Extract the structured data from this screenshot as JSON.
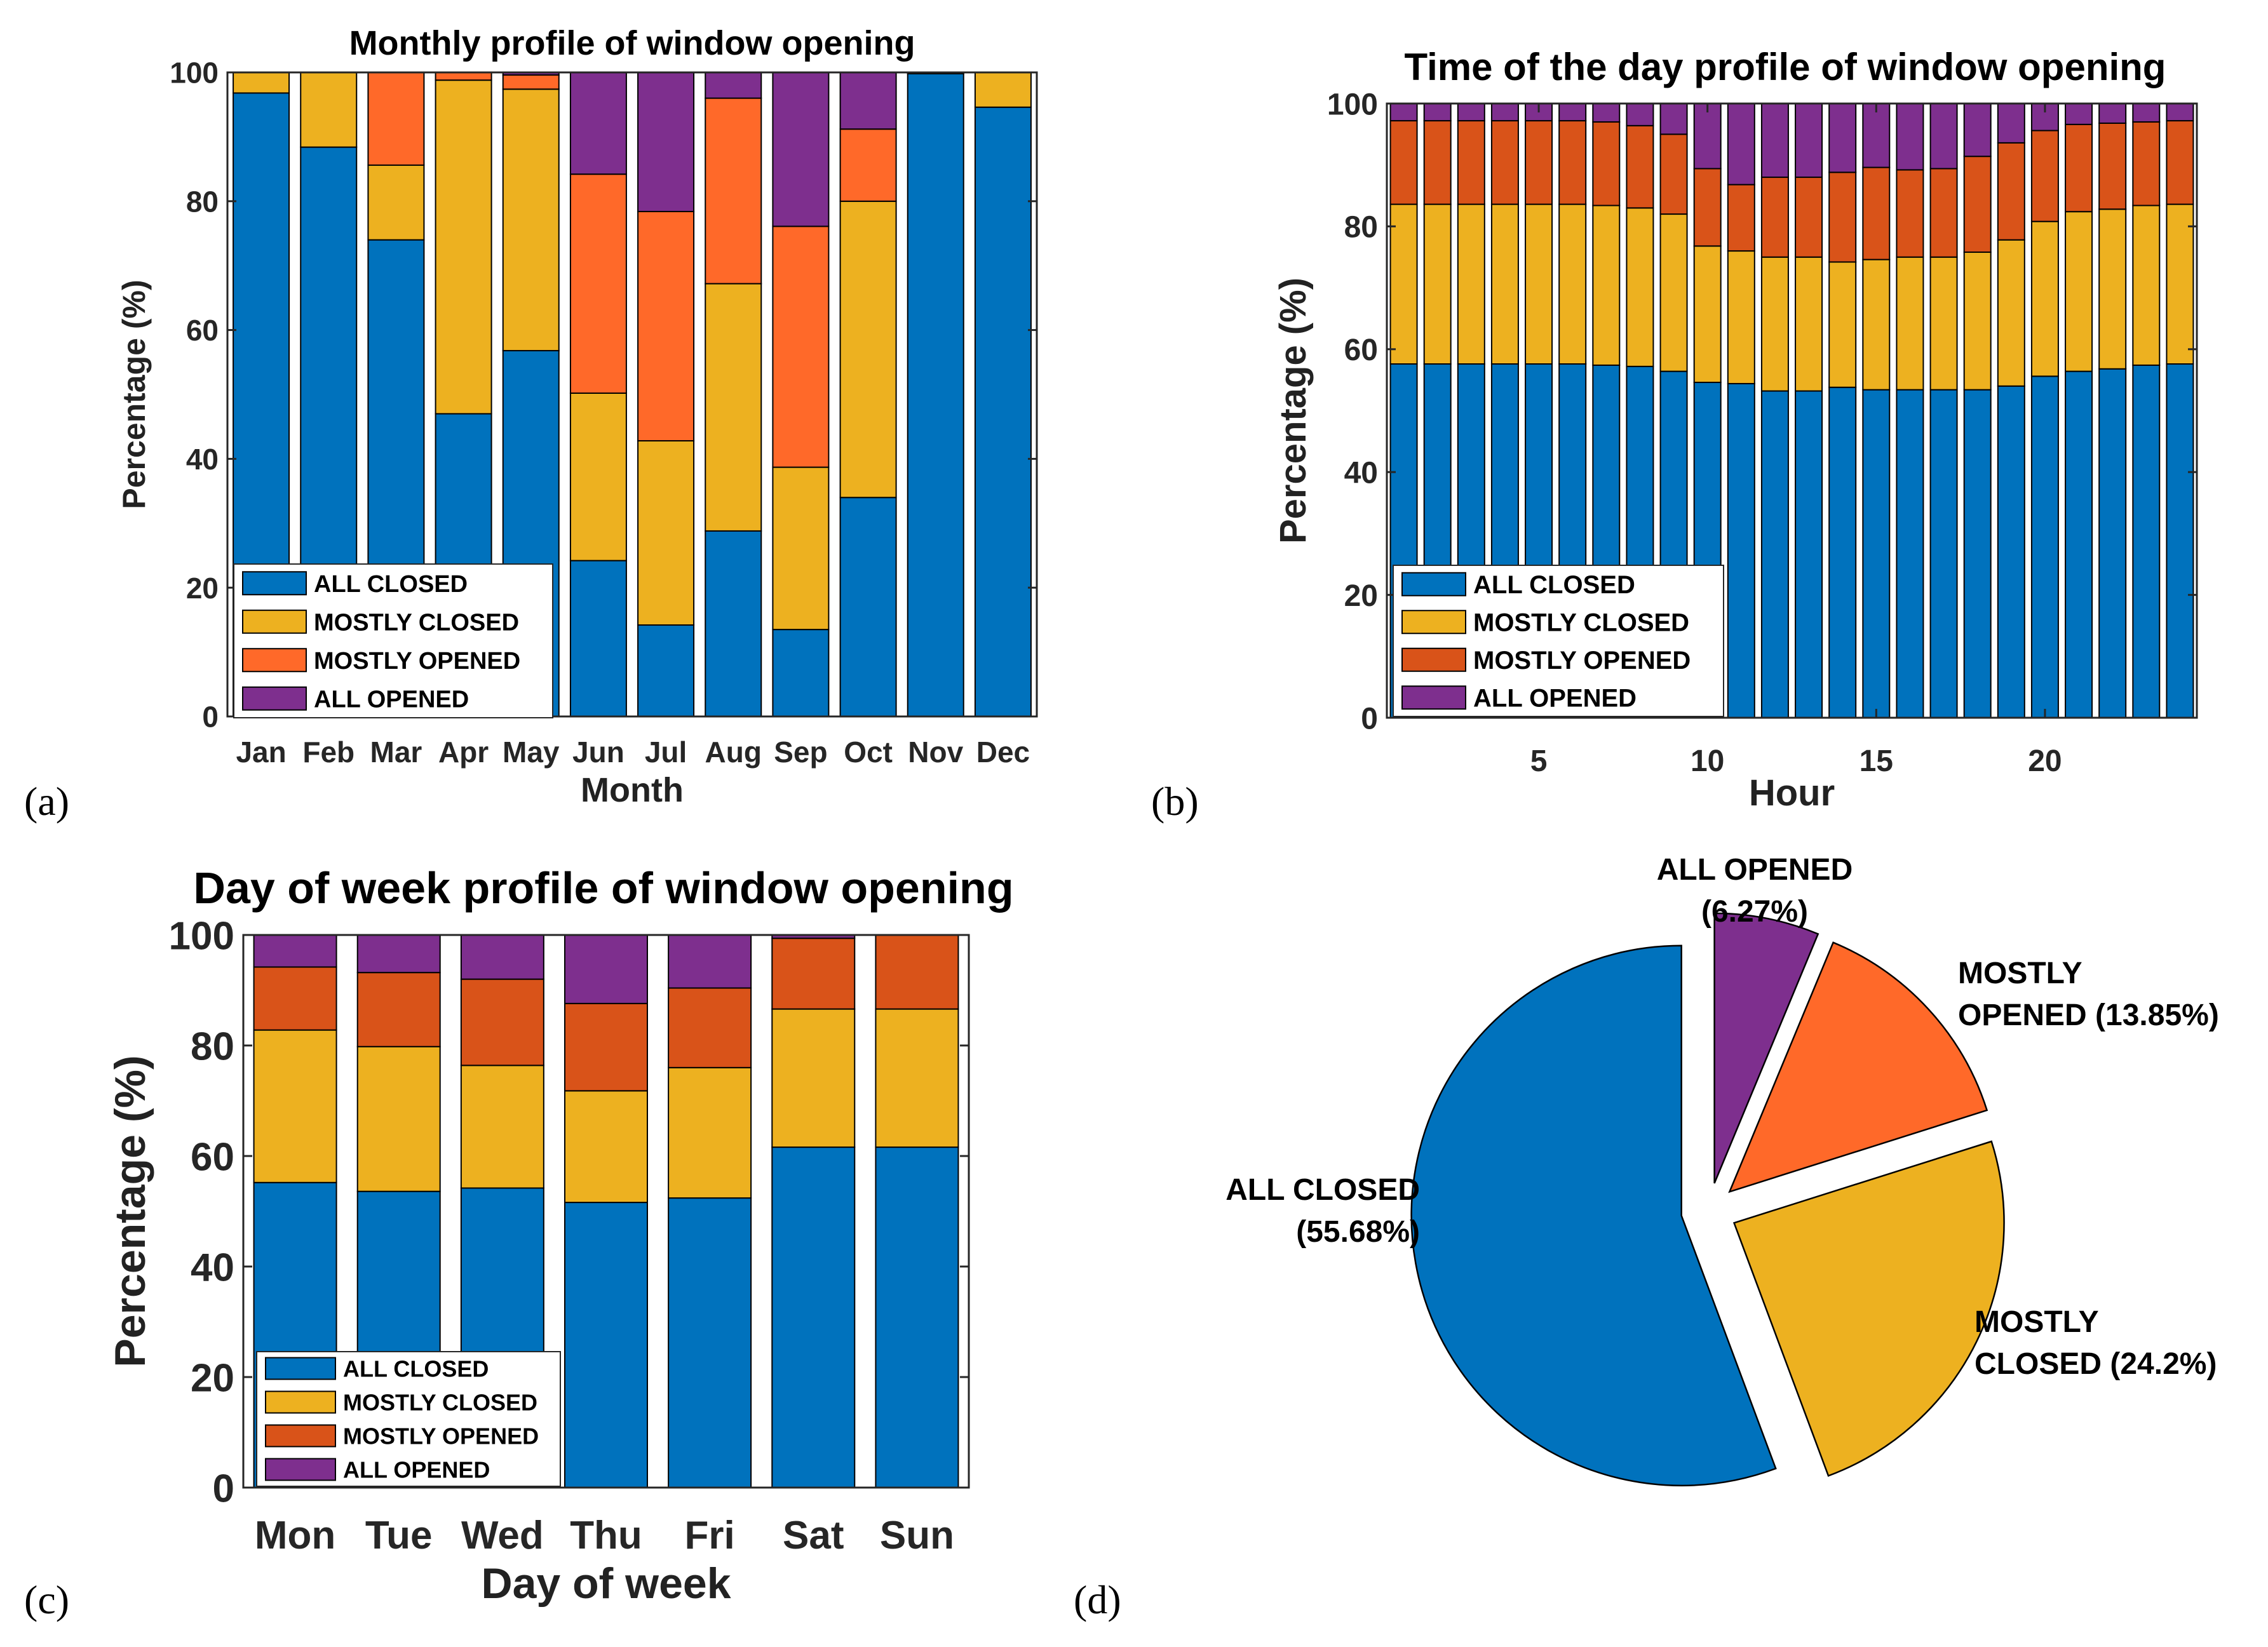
{
  "colors": {
    "all_closed": "#0072BD",
    "mostly_closed": "#EDB120",
    "mostly_opened_a": "#FF6929",
    "mostly_opened_b": "#D95319",
    "all_opened": "#7E2F8E"
  },
  "panel_letters": [
    "(a)",
    "(b)",
    "(c)",
    "(d)"
  ],
  "chart_data": [
    {
      "id": "a",
      "type": "bar",
      "stacked": true,
      "title": "Monthly profile of window opening",
      "xlabel": "Month",
      "ylabel": "Percentage (%)",
      "ylim": [
        0,
        100
      ],
      "yticks": [
        0,
        20,
        40,
        60,
        80,
        100
      ],
      "categories": [
        "Jan",
        "Feb",
        "Mar",
        "Apr",
        "May",
        "Jun",
        "Jul",
        "Aug",
        "Sep",
        "Oct",
        "Nov",
        "Dec"
      ],
      "series": [
        {
          "name": "ALL CLOSED",
          "color": "#0072BD",
          "values": [
            96.8,
            88.4,
            74.0,
            47.0,
            56.8,
            24.2,
            14.2,
            28.8,
            13.5,
            34.0,
            99.8,
            94.6
          ]
        },
        {
          "name": "MOSTLY CLOSED",
          "color": "#EDB120",
          "values": [
            3.2,
            11.6,
            11.6,
            51.8,
            40.6,
            26.0,
            28.6,
            38.4,
            25.2,
            46.0,
            0.2,
            5.4
          ]
        },
        {
          "name": "MOSTLY OPENED",
          "color": "#FF6929",
          "values": [
            0,
            0,
            14.4,
            1.2,
            2.2,
            34.0,
            35.6,
            28.8,
            37.4,
            11.2,
            0,
            0
          ]
        },
        {
          "name": "ALL OPENED",
          "color": "#7E2F8E",
          "values": [
            0,
            0,
            0,
            0,
            0.4,
            15.8,
            21.6,
            4.0,
            23.9,
            8.8,
            0,
            0
          ]
        }
      ],
      "legend": [
        "ALL CLOSED",
        "MOSTLY CLOSED",
        "MOSTLY OPENED",
        "ALL OPENED"
      ],
      "legend_location": "bottom-left"
    },
    {
      "id": "b",
      "type": "bar",
      "stacked": true,
      "title": "Time of the day profile of window opening",
      "xlabel": "Hour",
      "ylabel": "Percentage (%)",
      "ylim": [
        0,
        100
      ],
      "yticks": [
        0,
        20,
        40,
        60,
        80,
        100
      ],
      "xticks": [
        5,
        10,
        15,
        20
      ],
      "categories": [
        1,
        2,
        3,
        4,
        5,
        6,
        7,
        8,
        9,
        10,
        11,
        12,
        13,
        14,
        15,
        16,
        17,
        18,
        19,
        20,
        21,
        22,
        23,
        24
      ],
      "series": [
        {
          "name": "ALL CLOSED",
          "color": "#0072BD",
          "values": [
            57.6,
            57.6,
            57.6,
            57.6,
            57.6,
            57.6,
            57.4,
            57.2,
            56.4,
            54.6,
            54.4,
            53.2,
            53.2,
            53.8,
            53.4,
            53.4,
            53.4,
            53.4,
            54.0,
            55.6,
            56.4,
            56.8,
            57.4,
            57.6
          ]
        },
        {
          "name": "MOSTLY CLOSED",
          "color": "#EDB120",
          "values": [
            26.0,
            26.0,
            26.0,
            26.0,
            26.0,
            26.0,
            26.0,
            25.8,
            25.6,
            22.2,
            21.6,
            21.8,
            21.8,
            20.4,
            21.2,
            21.6,
            21.6,
            22.4,
            23.8,
            25.2,
            26.0,
            26.0,
            26.0,
            26.0
          ]
        },
        {
          "name": "MOSTLY OPENED",
          "color": "#D95319",
          "values": [
            13.6,
            13.6,
            13.6,
            13.6,
            13.6,
            13.6,
            13.6,
            13.4,
            13.0,
            12.6,
            10.8,
            13.0,
            13.0,
            14.6,
            15.0,
            14.2,
            14.4,
            15.6,
            15.8,
            14.8,
            14.2,
            14.0,
            13.6,
            13.6
          ]
        },
        {
          "name": "ALL OPENED",
          "color": "#7E2F8E",
          "values": [
            2.8,
            2.8,
            2.8,
            2.8,
            2.8,
            2.8,
            3.0,
            3.6,
            5.0,
            10.6,
            13.2,
            12.0,
            12.0,
            11.2,
            10.4,
            10.8,
            10.6,
            8.6,
            6.4,
            4.4,
            3.4,
            3.2,
            3.0,
            2.8
          ]
        }
      ],
      "legend": [
        "ALL CLOSED",
        "MOSTLY CLOSED",
        "MOSTLY OPENED",
        "ALL OPENED"
      ],
      "legend_location": "bottom-left"
    },
    {
      "id": "c",
      "type": "bar",
      "stacked": true,
      "title": "Day of week profile of window opening",
      "xlabel": "Day of week",
      "ylabel": "Percentage (%)",
      "ylim": [
        0,
        100
      ],
      "yticks": [
        0,
        20,
        40,
        60,
        80,
        100
      ],
      "categories": [
        "Mon",
        "Tue",
        "Wed",
        "Thu",
        "Fri",
        "Sat",
        "Sun"
      ],
      "series": [
        {
          "name": "ALL CLOSED",
          "color": "#0072BD",
          "values": [
            55.2,
            53.6,
            54.2,
            51.6,
            52.4,
            61.6,
            61.6
          ]
        },
        {
          "name": "MOSTLY CLOSED",
          "color": "#EDB120",
          "values": [
            27.6,
            26.2,
            22.2,
            20.2,
            23.6,
            25.0,
            25.0
          ]
        },
        {
          "name": "MOSTLY OPENED",
          "color": "#D95319",
          "values": [
            11.4,
            13.4,
            15.6,
            15.8,
            14.4,
            12.8,
            13.4
          ]
        },
        {
          "name": "ALL OPENED",
          "color": "#7E2F8E",
          "values": [
            5.8,
            6.8,
            8.0,
            12.4,
            9.6,
            0.6,
            0
          ]
        }
      ],
      "legend": [
        "ALL CLOSED",
        "MOSTLY CLOSED",
        "MOSTLY OPENED",
        "ALL OPENED"
      ],
      "legend_location": "bottom-left"
    },
    {
      "id": "d",
      "type": "pie",
      "title": "",
      "exploded": true,
      "slices": [
        {
          "name": "ALL OPENED",
          "value": 6.27,
          "color": "#7E2F8E",
          "label_lines": [
            "ALL OPENED",
            "(6.27%)"
          ]
        },
        {
          "name": "MOSTLY OPENED",
          "value": 13.85,
          "color": "#FF6929",
          "label_lines": [
            "MOSTLY",
            "OPENED (13.85%)"
          ]
        },
        {
          "name": "MOSTLY CLOSED",
          "value": 24.2,
          "color": "#EDB120",
          "label_lines": [
            "MOSTLY",
            "CLOSED (24.2%)"
          ]
        },
        {
          "name": "ALL CLOSED",
          "value": 55.68,
          "color": "#0072BD",
          "label_lines": [
            "ALL CLOSED",
            "(55.68%)"
          ]
        }
      ]
    }
  ]
}
